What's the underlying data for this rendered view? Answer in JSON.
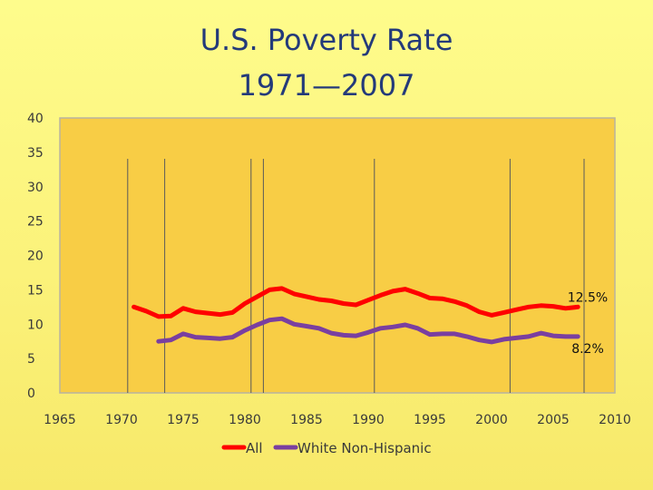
{
  "chart_data": {
    "type": "line",
    "title": [
      "U.S. Poverty Rate",
      "1971—2007"
    ],
    "xlim": [
      1965,
      2010
    ],
    "ylim": [
      0,
      40
    ],
    "xticks": [
      1965,
      1970,
      1975,
      1980,
      1985,
      1990,
      1995,
      2000,
      2005,
      2010
    ],
    "yticks": [
      0,
      5,
      10,
      15,
      20,
      25,
      30,
      35,
      40
    ],
    "grid": false,
    "legend_position": "bottom",
    "colors": {
      "plot_bg": "#f8cd45",
      "all": "#ff0000",
      "white": "#7a3fa0",
      "vline": "#5a5a5a"
    },
    "vertical_lines": [
      1970.5,
      1973.5,
      1980.5,
      1981.5,
      1990.5,
      2001.5,
      2007.5
    ],
    "series": [
      {
        "name": "All",
        "color": "#ff0000",
        "x": [
          1971,
          1972,
          1973,
          1974,
          1975,
          1976,
          1977,
          1978,
          1979,
          1980,
          1981,
          1982,
          1983,
          1984,
          1985,
          1986,
          1987,
          1988,
          1989,
          1990,
          1991,
          1992,
          1993,
          1994,
          1995,
          1996,
          1997,
          1998,
          1999,
          2000,
          2001,
          2002,
          2003,
          2004,
          2005,
          2006,
          2007
        ],
        "y": [
          12.5,
          11.9,
          11.1,
          11.2,
          12.3,
          11.8,
          11.6,
          11.4,
          11.7,
          13.0,
          14.0,
          15.0,
          15.2,
          14.4,
          14.0,
          13.6,
          13.4,
          13.0,
          12.8,
          13.5,
          14.2,
          14.8,
          15.1,
          14.5,
          13.8,
          13.7,
          13.3,
          12.7,
          11.8,
          11.3,
          11.7,
          12.1,
          12.5,
          12.7,
          12.6,
          12.3,
          12.5
        ]
      },
      {
        "name": "White Non-Hispanic",
        "color": "#7a3fa0",
        "x": [
          1973,
          1974,
          1975,
          1976,
          1977,
          1978,
          1979,
          1980,
          1981,
          1982,
          1983,
          1984,
          1985,
          1986,
          1987,
          1988,
          1989,
          1990,
          1991,
          1992,
          1993,
          1994,
          1995,
          1996,
          1997,
          1998,
          1999,
          2000,
          2001,
          2002,
          2003,
          2004,
          2005,
          2006,
          2007
        ],
        "y": [
          7.5,
          7.7,
          8.6,
          8.1,
          8.0,
          7.9,
          8.1,
          9.1,
          9.9,
          10.6,
          10.8,
          10.0,
          9.7,
          9.4,
          8.7,
          8.4,
          8.3,
          8.8,
          9.4,
          9.6,
          9.9,
          9.4,
          8.5,
          8.6,
          8.6,
          8.2,
          7.7,
          7.4,
          7.8,
          8.0,
          8.2,
          8.7,
          8.3,
          8.2,
          8.2
        ]
      }
    ],
    "annotations": [
      {
        "text": "12.5%",
        "x": 2007,
        "y": 12.5
      },
      {
        "text": "8.2%",
        "x": 2007,
        "y": 8.2
      }
    ]
  }
}
